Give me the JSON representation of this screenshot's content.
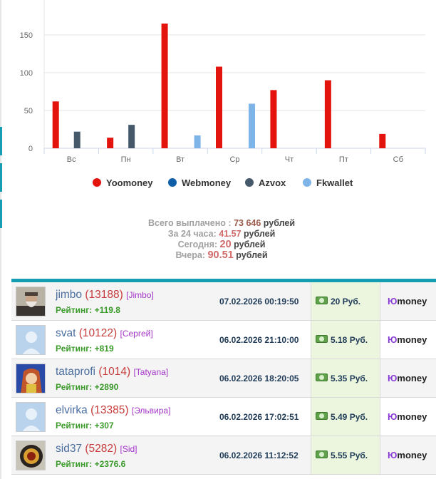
{
  "chart_data": {
    "type": "bar",
    "categories": [
      "Вс",
      "Пн",
      "Вт",
      "Ср",
      "Чт",
      "Пт",
      "Сб"
    ],
    "series": [
      {
        "name": "Yoomoney",
        "color": "#e3130d",
        "values": [
          62,
          14,
          165,
          108,
          77,
          90,
          19
        ]
      },
      {
        "name": "Webmoney",
        "color": "#0f5fa8",
        "values": [
          null,
          null,
          null,
          null,
          null,
          null,
          null
        ]
      },
      {
        "name": "Azvox",
        "color": "#45596a",
        "values": [
          22,
          31,
          null,
          null,
          null,
          null,
          null
        ]
      },
      {
        "name": "Fkwallet",
        "color": "#7fb4e8",
        "values": [
          null,
          null,
          17,
          59,
          null,
          null,
          null
        ]
      }
    ],
    "yticks": [
      "0",
      "50",
      "100",
      "150"
    ],
    "ylim": [
      0,
      175
    ],
    "grid": true,
    "legend_position": "bottom"
  },
  "stats": {
    "total_label": "Всего выплачено :",
    "total_value": "73 646",
    "day_label": "За 24 часа:",
    "day_value": "41.57",
    "today_label": "Сегодня:",
    "today_value": "20",
    "yesterday_label": "Вчера:",
    "yesterday_value": "90.51",
    "unit": "рублей"
  },
  "payouts": [
    {
      "user": "jimbo",
      "count": "(13188)",
      "nick": "[Jimbo]",
      "rating": "Рейтинг: +119.8",
      "date": "07.02.2026 00:19:50",
      "amount": "20 Руб.",
      "method_prefix": "Ю",
      "method_rest": "money",
      "avatar": "old-man-photo"
    },
    {
      "user": "svat",
      "count": "(10122)",
      "nick": "[Сергей]",
      "rating": "Рейтинг: +819",
      "date": "06.02.2026 21:10:00",
      "amount": "5.18 Руб.",
      "method_prefix": "Ю",
      "method_rest": "money",
      "avatar": "default-avatar"
    },
    {
      "user": "tataprofi",
      "count": "(1014)",
      "nick": "[Tatyana]",
      "rating": "Рейтинг: +2890",
      "date": "06.02.2026 18:20:05",
      "amount": "5.35 Руб.",
      "method_prefix": "Ю",
      "method_rest": "money",
      "avatar": "anime-girl-photo"
    },
    {
      "user": "elvirka",
      "count": "(13385)",
      "nick": "[Эльвира]",
      "rating": "Рейтинг: +307",
      "date": "06.02.2026 17:02:51",
      "amount": "5.49 Руб.",
      "method_prefix": "Ю",
      "method_rest": "money",
      "avatar": "default-avatar"
    },
    {
      "user": "sid37",
      "count": "(5282)",
      "nick": "[Sid]",
      "rating": "Рейтинг: +2376.6",
      "date": "06.02.2026 11:12:52",
      "amount": "5.55 Руб.",
      "method_prefix": "Ю",
      "method_rest": "money",
      "avatar": "emblem-photo"
    }
  ]
}
